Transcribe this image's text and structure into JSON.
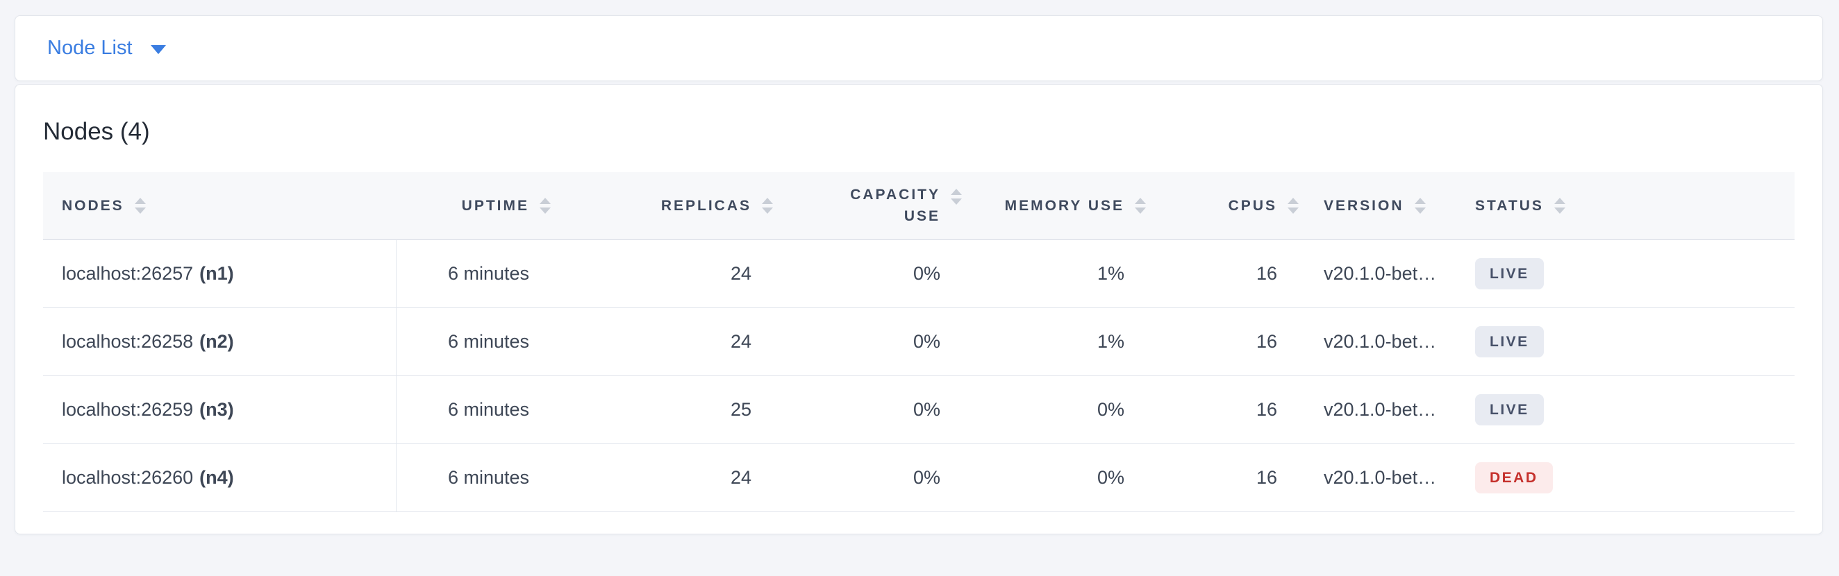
{
  "nav": {
    "view_dropdown_label": "Node List"
  },
  "summary": {
    "title": "Nodes (4)"
  },
  "table": {
    "columns": [
      {
        "key": "nodes",
        "label": "NODES",
        "align": "left"
      },
      {
        "key": "uptime",
        "label": "UPTIME",
        "align": "right"
      },
      {
        "key": "replicas",
        "label": "REPLICAS",
        "align": "right"
      },
      {
        "key": "capacity_use",
        "label": "CAPACITY USE",
        "lines": [
          "CAPACITY",
          "USE"
        ],
        "align": "right"
      },
      {
        "key": "memory_use",
        "label": "MEMORY USE",
        "align": "right"
      },
      {
        "key": "cpus",
        "label": "CPUS",
        "align": "right"
      },
      {
        "key": "version",
        "label": "VERSION",
        "align": "left"
      },
      {
        "key": "status",
        "label": "STATUS",
        "align": "left"
      }
    ],
    "rows": [
      {
        "address": "localhost:26257",
        "node_id": "(n1)",
        "uptime": "6 minutes",
        "replicas": "24",
        "capacity_use": "0%",
        "memory_use": "1%",
        "cpus": "16",
        "version": "v20.1.0-bet…",
        "status": "LIVE"
      },
      {
        "address": "localhost:26258",
        "node_id": "(n2)",
        "uptime": "6 minutes",
        "replicas": "24",
        "capacity_use": "0%",
        "memory_use": "1%",
        "cpus": "16",
        "version": "v20.1.0-bet…",
        "status": "LIVE"
      },
      {
        "address": "localhost:26259",
        "node_id": "(n3)",
        "uptime": "6 minutes",
        "replicas": "25",
        "capacity_use": "0%",
        "memory_use": "0%",
        "cpus": "16",
        "version": "v20.1.0-bet…",
        "status": "LIVE"
      },
      {
        "address": "localhost:26260",
        "node_id": "(n4)",
        "uptime": "6 minutes",
        "replicas": "24",
        "capacity_use": "0%",
        "memory_use": "0%",
        "cpus": "16",
        "version": "v20.1.0-bet…",
        "status": "DEAD"
      }
    ],
    "status_styles": {
      "LIVE": {
        "bg": "#e8ebf2",
        "color": "#475169"
      },
      "DEAD": {
        "bg": "#fcebeb",
        "color": "#c5302c"
      }
    }
  },
  "colors": {
    "accent_blue": "#3a7de1",
    "page_bg": "#f4f5f9",
    "header_bg": "#f7f8fa",
    "header_text": "#3f4a5e",
    "cell_text": "#3e4756"
  }
}
